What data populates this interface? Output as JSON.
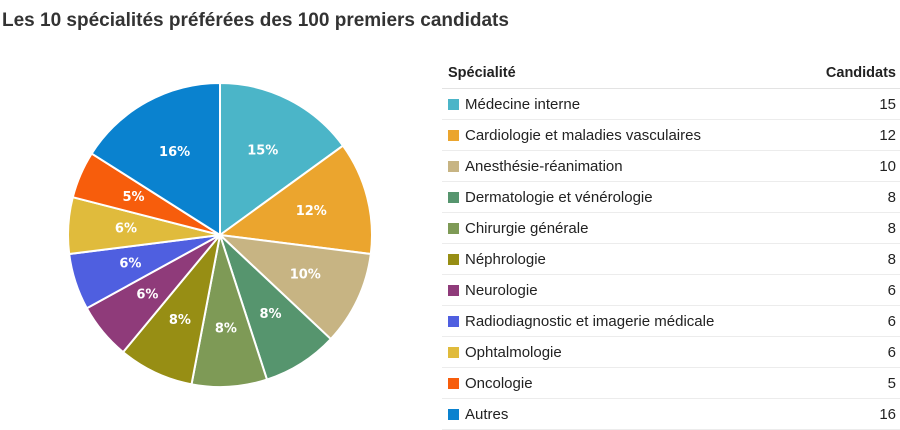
{
  "title": "Les 10 spécialités préférées des 100 premiers candidats",
  "table": {
    "header_specialite": "Spécialité",
    "header_candidats": "Candidats"
  },
  "chart_data": {
    "type": "pie",
    "title": "Les 10 spécialités préférées des 100 premiers candidats",
    "categories": [
      "Médecine interne",
      "Cardiologie et maladies vasculaires",
      "Anesthésie-réanimation",
      "Dermatologie et vénérologie",
      "Chirurgie générale",
      "Néphrologie",
      "Neurologie",
      "Radiodiagnostic et imagerie médicale",
      "Ophtalmologie",
      "Oncologie",
      "Autres"
    ],
    "values": [
      15,
      12,
      10,
      8,
      8,
      8,
      6,
      6,
      6,
      5,
      16
    ],
    "percent_labels": [
      "15%",
      "12%",
      "10%",
      "8%",
      "8%",
      "8%",
      "6%",
      "6%",
      "6%",
      "5%",
      "16%"
    ],
    "colors": [
      "#4bb5c8",
      "#eba52e",
      "#c7b483",
      "#56956e",
      "#7e9a56",
      "#978e14",
      "#8f3b7a",
      "#4f5fe0",
      "#e0bb3c",
      "#f75d0c",
      "#0a82cf"
    ],
    "legend": "right-table",
    "start_angle_deg": 0,
    "direction": "clockwise"
  }
}
